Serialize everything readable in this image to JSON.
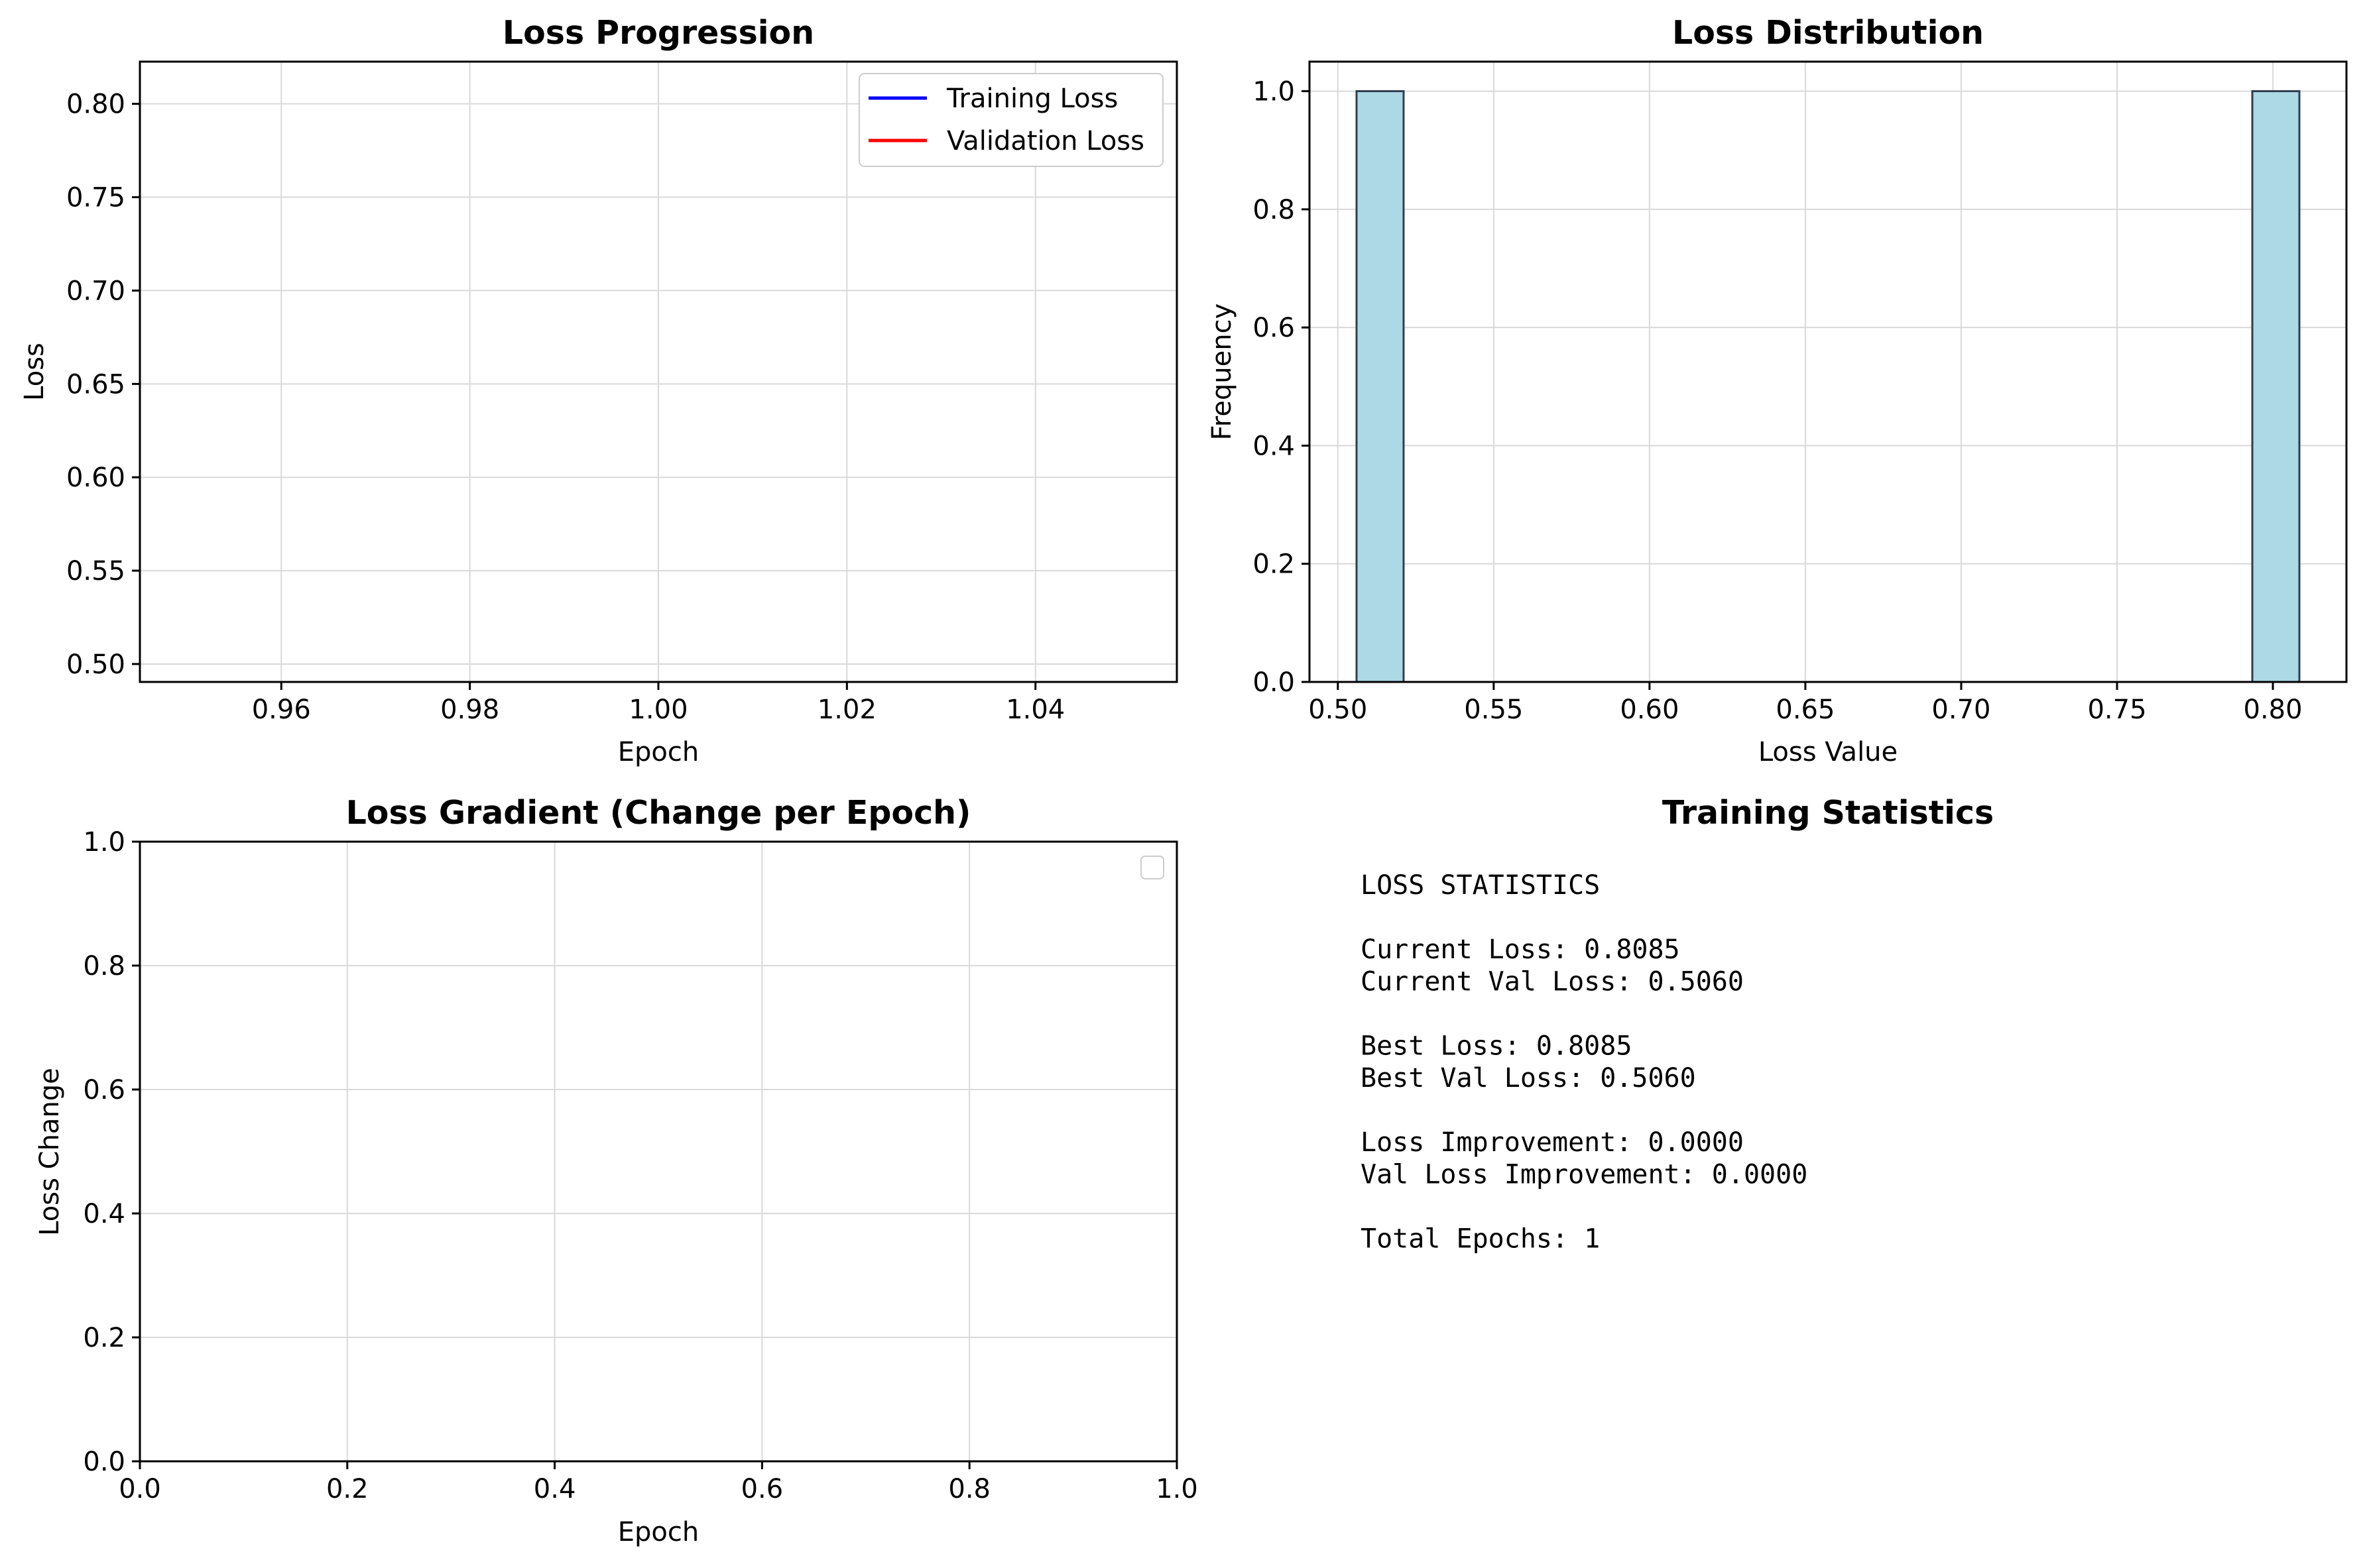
{
  "chart_data": [
    {
      "type": "line",
      "title": "Loss Progression",
      "xlabel": "Epoch",
      "ylabel": "Loss",
      "xlim": [
        0.945,
        1.055
      ],
      "ylim": [
        0.4904,
        0.8226
      ],
      "x_ticks": [
        0.96,
        0.98,
        1.0,
        1.02,
        1.04
      ],
      "x_tick_labels": [
        "0.96",
        "0.98",
        "1.00",
        "1.02",
        "1.04"
      ],
      "y_ticks": [
        0.5,
        0.55,
        0.6,
        0.65,
        0.7,
        0.75,
        0.8
      ],
      "y_tick_labels": [
        "0.50",
        "0.55",
        "0.60",
        "0.65",
        "0.70",
        "0.75",
        "0.80"
      ],
      "grid": true,
      "legend": "top-right",
      "series": [
        {
          "name": "Training Loss",
          "color": "#0000ff",
          "x": [
            1
          ],
          "values": [
            0.8085
          ]
        },
        {
          "name": "Validation Loss",
          "color": "#ff0000",
          "x": [
            1
          ],
          "values": [
            0.506
          ]
        }
      ]
    },
    {
      "type": "bar",
      "title": "Loss Distribution",
      "xlabel": "Loss Value",
      "ylabel": "Frequency",
      "xlim": [
        0.4909,
        0.8236
      ],
      "ylim": [
        0,
        1.05
      ],
      "x_ticks": [
        0.5,
        0.55,
        0.6,
        0.65,
        0.7,
        0.75,
        0.8
      ],
      "x_tick_labels": [
        "0.50",
        "0.55",
        "0.60",
        "0.65",
        "0.70",
        "0.75",
        "0.80"
      ],
      "y_ticks": [
        0.0,
        0.2,
        0.4,
        0.6,
        0.8,
        1.0
      ],
      "y_tick_labels": [
        "0.0",
        "0.2",
        "0.4",
        "0.6",
        "0.8",
        "1.0"
      ],
      "grid": true,
      "bar_color": "#add8e6",
      "bins": [
        {
          "start": 0.506,
          "end": 0.5211,
          "count": 1
        },
        {
          "start": 0.7934,
          "end": 0.8085,
          "count": 1
        }
      ]
    },
    {
      "type": "line",
      "title": "Loss Gradient (Change per Epoch)",
      "xlabel": "Epoch",
      "ylabel": "Loss Change",
      "xlim": [
        0,
        1
      ],
      "ylim": [
        0,
        1
      ],
      "x_ticks": [
        0.0,
        0.2,
        0.4,
        0.6,
        0.8,
        1.0
      ],
      "x_tick_labels": [
        "0.0",
        "0.2",
        "0.4",
        "0.6",
        "0.8",
        "1.0"
      ],
      "y_ticks": [
        0.0,
        0.2,
        0.4,
        0.6,
        0.8,
        1.0
      ],
      "y_tick_labels": [
        "0.0",
        "0.2",
        "0.4",
        "0.6",
        "0.8",
        "1.0"
      ],
      "grid": true,
      "legend": "top-right",
      "series": []
    }
  ],
  "stats_panel": {
    "title": "Training Statistics",
    "lines": [
      "LOSS STATISTICS",
      "",
      "Current Loss: 0.8085",
      "Current Val Loss: 0.5060",
      "",
      "Best Loss: 0.8085",
      "Best Val Loss: 0.5060",
      "",
      "Loss Improvement: 0.0000",
      "Val Loss Improvement: 0.0000",
      "",
      "Total Epochs: 1"
    ]
  }
}
